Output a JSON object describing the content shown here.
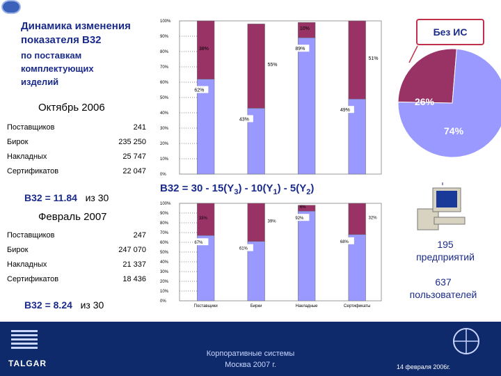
{
  "header": {
    "title_line1": "Динамика изменения",
    "title_line2": "показателя В32",
    "subtitle": "по поставкам\nкомплектующих\nизделий"
  },
  "period1": {
    "label": "Октябрь 2006",
    "stats": [
      {
        "name": "Поставщиков",
        "value": "241"
      },
      {
        "name": "Бирок",
        "value": "235 250"
      },
      {
        "name": "Накладных",
        "value": "25 747"
      },
      {
        "name": "Сертификатов",
        "value": "22 047"
      }
    ],
    "b32": "В32 = 11.84",
    "of": "из  30"
  },
  "period2": {
    "label": "Февраль 2007",
    "stats": [
      {
        "name": "Поставщиков",
        "value": "247"
      },
      {
        "name": "Бирок",
        "value": "247 070"
      },
      {
        "name": "Накладных",
        "value": "21 337"
      },
      {
        "name": "Сертификатов",
        "value": "18 436"
      }
    ],
    "b32": "В32 = 8.24",
    "of": "из  30"
  },
  "formula": {
    "main": "В32 = 30 - 15(Y",
    "s1": "3",
    "p2": ") - 10(Y",
    "s2": "1",
    "p3": ") - 5(Y",
    "s3": "2",
    "p4": ")"
  },
  "no_is": {
    "label": "Без ИС",
    "pie": {
      "outside": "26%",
      "inside": "74%"
    }
  },
  "enterprises": {
    "count": "195",
    "label": "предприятий"
  },
  "users": {
    "count": "637",
    "label": "пользователей"
  },
  "footer": {
    "corp": "Корпоративные системы\nМосква 2007 г.",
    "date": "14 февраля 2006г.",
    "company": "TALGAR"
  },
  "colors": {
    "blue_bar": "#9999ff",
    "maroon_bar": "#993366",
    "footer_bg": "#0f2a6a",
    "accent": "#c0304a"
  },
  "chart_data": [
    {
      "type": "bar",
      "title": "",
      "y_ticks": [
        "0%",
        "10%",
        "20%",
        "30%",
        "40%",
        "50%",
        "60%",
        "70%",
        "80%",
        "90%",
        "100%"
      ],
      "ylim": [
        0,
        100
      ],
      "x_ticks": [],
      "series": [
        {
          "values": [
            62,
            43,
            89,
            49
          ]
        },
        {
          "values": [
            38,
            55,
            10,
            51
          ]
        }
      ],
      "label_low": [
        "62%",
        "43%",
        "89%",
        "49%"
      ],
      "label_high": [
        "38%",
        "55%",
        "10%",
        "51%"
      ]
    },
    {
      "type": "bar",
      "title": "",
      "y_ticks": [
        "0%",
        "10%",
        "20%",
        "30%",
        "40%",
        "50%",
        "60%",
        "70%",
        "80%",
        "90%",
        "100%"
      ],
      "ylim": [
        0,
        100
      ],
      "categories": [
        "Поставщики",
        "Бирки",
        "Накладные",
        "Сертификаты"
      ],
      "series": [
        {
          "values": [
            67,
            61,
            92,
            68
          ]
        },
        {
          "values": [
            33,
            39,
            6,
            32
          ]
        }
      ],
      "label_low": [
        "67%",
        "61%",
        "92%",
        "68%"
      ],
      "label_high": [
        "33%",
        "39%",
        "6%",
        "32%"
      ]
    },
    {
      "type": "pie",
      "slices": [
        {
          "label": "26%",
          "value": 26
        },
        {
          "label": "74%",
          "value": 74
        }
      ]
    }
  ]
}
